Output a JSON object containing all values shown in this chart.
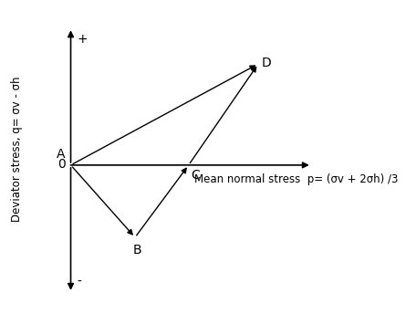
{
  "title": "",
  "ylabel": "Deviator stress, q= σv - σh",
  "xlabel": "Mean normal stress  p= (σv + 2σh) /3",
  "background_color": "#ffffff",
  "text_color": "#000000",
  "point_A": [
    0.18,
    0.0
  ],
  "point_B": [
    0.42,
    -0.3
  ],
  "point_C": [
    0.62,
    0.0
  ],
  "point_D": [
    0.88,
    0.42
  ],
  "label_A": "A",
  "label_B": "B",
  "label_C": "C",
  "label_D": "D",
  "line_color": "#000000",
  "label_font_size": 10,
  "axis_label_fontsize": 8.5,
  "plus_label": "+",
  "minus_label": "-",
  "zero_label": "0",
  "xlim": [
    -0.05,
    1.15
  ],
  "ylim": [
    -0.58,
    0.65
  ]
}
